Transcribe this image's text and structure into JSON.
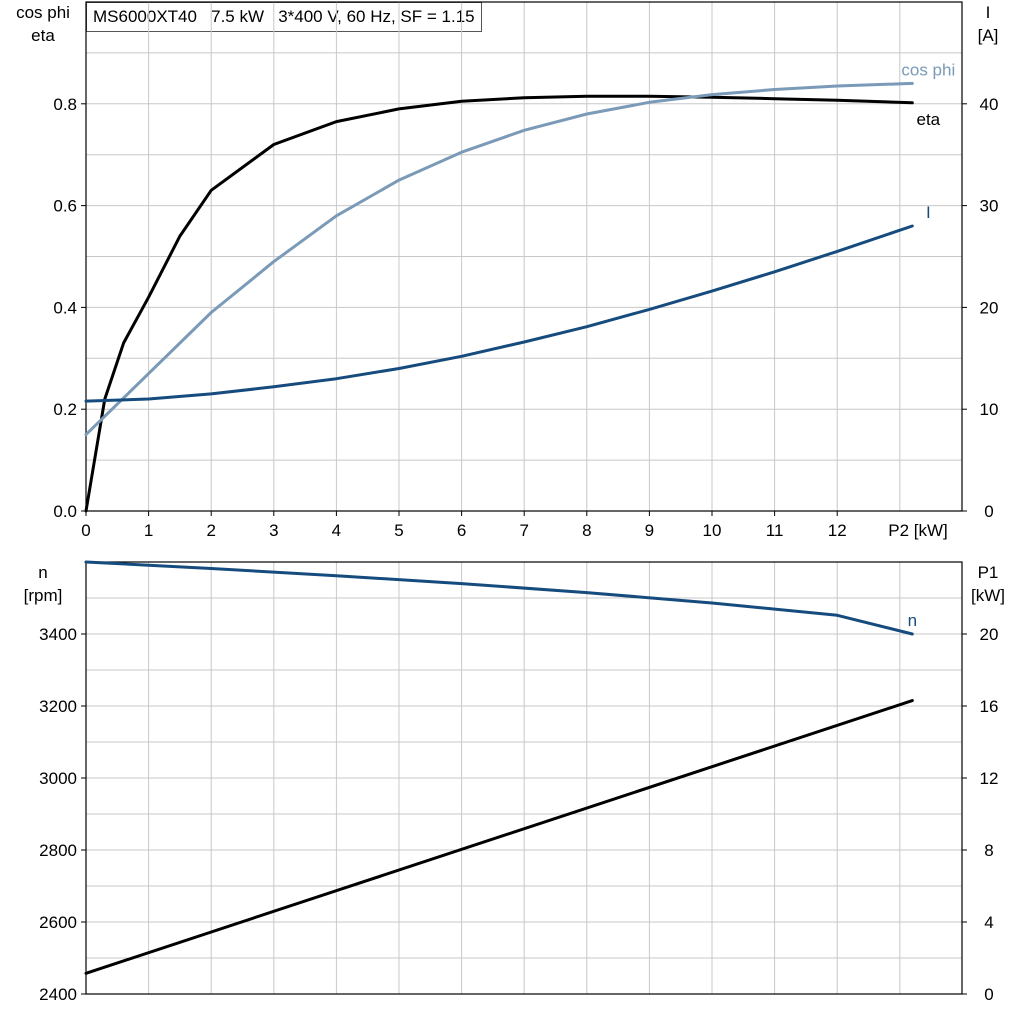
{
  "title_box": "MS6000XT40   7.5 kW   3*400 V, 60 Hz, SF = 1.15",
  "colors": {
    "eta": "#000000",
    "cos_phi": "#7a9ab8",
    "current": "#164b7d",
    "speed": "#164b7d",
    "p1": "#000000",
    "grid": "#c8c8c8"
  },
  "chart_data": [
    {
      "type": "line",
      "panel": "top",
      "x_tick_labels": [
        "0",
        "1",
        "2",
        "3",
        "4",
        "5",
        "6",
        "7",
        "8",
        "9",
        "10",
        "11",
        "12"
      ],
      "x_unit_label": "P2 [kW]",
      "xlim": [
        0,
        14
      ],
      "left_axis": {
        "label_line1": "cos phi",
        "label_line2": "eta",
        "ylim": [
          0,
          1.0
        ],
        "tick_labels": [
          "0.0",
          "0.2",
          "0.4",
          "0.6",
          "0.8"
        ]
      },
      "right_axis": {
        "label_line1": "I",
        "label_line2": "[A]",
        "ylim": [
          0,
          50
        ],
        "tick_labels": [
          "0",
          "10",
          "20",
          "30",
          "40"
        ]
      },
      "grid": true,
      "series": [
        {
          "name": "eta",
          "axis": "left",
          "color_key": "eta",
          "x": [
            0,
            0.3,
            0.6,
            1,
            1.5,
            2,
            3,
            4,
            5,
            6,
            7,
            8,
            9,
            10,
            11,
            12,
            13.2
          ],
          "y": [
            0.0,
            0.22,
            0.33,
            0.42,
            0.54,
            0.63,
            0.72,
            0.765,
            0.79,
            0.805,
            0.812,
            0.815,
            0.815,
            0.813,
            0.81,
            0.807,
            0.802
          ]
        },
        {
          "name": "cos phi",
          "axis": "left",
          "color_key": "cos_phi",
          "x": [
            0,
            0.5,
            1,
            2,
            3,
            4,
            5,
            6,
            7,
            8,
            9,
            10,
            11,
            12,
            13.2
          ],
          "y": [
            0.15,
            0.21,
            0.27,
            0.39,
            0.49,
            0.58,
            0.65,
            0.705,
            0.748,
            0.78,
            0.803,
            0.818,
            0.828,
            0.835,
            0.84
          ]
        },
        {
          "name": "I",
          "axis": "right",
          "color_key": "current",
          "x": [
            0,
            1,
            2,
            3,
            4,
            5,
            6,
            7,
            8,
            9,
            10,
            11,
            12,
            13.2
          ],
          "y": [
            10.8,
            11.0,
            11.5,
            12.2,
            13.0,
            14.0,
            15.2,
            16.6,
            18.1,
            19.8,
            21.6,
            23.5,
            25.5,
            28.0
          ]
        }
      ]
    },
    {
      "type": "line",
      "panel": "bottom",
      "xlim": [
        0,
        14
      ],
      "left_axis": {
        "label_line1": "n",
        "label_line2": "[rpm]",
        "ylim": [
          2400,
          3600
        ],
        "tick_labels": [
          "2400",
          "2600",
          "2800",
          "3000",
          "3200",
          "3400"
        ]
      },
      "right_axis": {
        "label_line1": "P1",
        "label_line2": "[kW]",
        "ylim": [
          0,
          24
        ],
        "tick_labels": [
          "0",
          "4",
          "8",
          "12",
          "16",
          "20"
        ]
      },
      "grid": true,
      "series": [
        {
          "name": "n",
          "axis": "left",
          "color_key": "speed",
          "x": [
            0,
            2,
            4,
            6,
            8,
            10,
            12,
            13.2
          ],
          "y": [
            3600,
            3582,
            3562,
            3540,
            3515,
            3486,
            3452,
            3400
          ]
        },
        {
          "axis": "right",
          "color_key": "p1",
          "x": [
            0,
            13.2
          ],
          "y": [
            1.15,
            16.3
          ]
        }
      ]
    }
  ]
}
